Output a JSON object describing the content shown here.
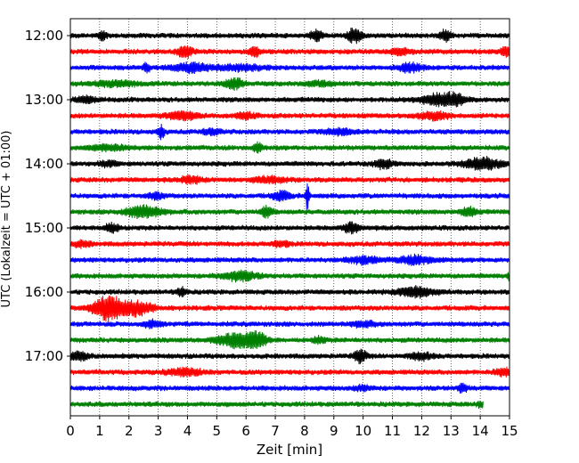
{
  "chart_data": {
    "type": "line",
    "title": "",
    "xlabel": "Zeit  [min]",
    "ylabel": "UTC (Lokalzeit = UTC + 01:00)",
    "xlim": [
      0,
      15
    ],
    "x_ticks": [
      "0",
      "1",
      "2",
      "3",
      "4",
      "5",
      "6",
      "7",
      "8",
      "9",
      "10",
      "11",
      "12",
      "13",
      "14",
      "15"
    ],
    "y_tick_labels": [
      "12:00",
      "13:00",
      "14:00",
      "15:00",
      "16:00",
      "17:00"
    ],
    "grid": "vertical dotted",
    "trace_colors": [
      "#000000",
      "#ff0000",
      "#0000ff",
      "#008000"
    ],
    "traces": [
      {
        "start": "12:00",
        "color": "black",
        "end_min": 15,
        "events": [
          [
            1.1,
            0.5,
            0.12
          ],
          [
            8.4,
            0.7,
            0.2
          ],
          [
            9.7,
            0.8,
            0.25
          ],
          [
            12.8,
            0.6,
            0.2
          ]
        ]
      },
      {
        "start": "12:15",
        "color": "red",
        "end_min": 15,
        "events": [
          [
            3.9,
            0.7,
            0.25
          ],
          [
            6.3,
            0.8,
            0.15
          ],
          [
            11.3,
            0.4,
            0.3
          ],
          [
            14.9,
            0.5,
            0.2
          ]
        ]
      },
      {
        "start": "12:30",
        "color": "blue",
        "end_min": 15,
        "events": [
          [
            2.6,
            0.7,
            0.1
          ],
          [
            4.1,
            0.5,
            0.6
          ],
          [
            5.8,
            0.3,
            0.8
          ],
          [
            11.6,
            0.5,
            0.4
          ]
        ]
      },
      {
        "start": "12:45",
        "color": "green",
        "end_min": 15,
        "events": [
          [
            1.5,
            0.3,
            0.8
          ],
          [
            5.6,
            0.6,
            0.3
          ],
          [
            8.5,
            0.25,
            0.5
          ]
        ]
      },
      {
        "start": "13:00",
        "color": "black",
        "end_min": 15,
        "events": [
          [
            0.5,
            0.4,
            0.3
          ],
          [
            12.6,
            0.7,
            0.6
          ],
          [
            13.2,
            0.5,
            0.3
          ]
        ]
      },
      {
        "start": "13:15",
        "color": "red",
        "end_min": 15,
        "events": [
          [
            3.8,
            0.45,
            0.5
          ],
          [
            6.0,
            0.35,
            0.3
          ],
          [
            12.4,
            0.4,
            0.5
          ]
        ]
      },
      {
        "start": "13:30",
        "color": "blue",
        "end_min": 15,
        "events": [
          [
            3.1,
            0.8,
            0.1
          ],
          [
            4.8,
            0.3,
            0.3
          ],
          [
            9.2,
            0.3,
            0.5
          ]
        ]
      },
      {
        "start": "13:45",
        "color": "green",
        "end_min": 15,
        "events": [
          [
            1.3,
            0.3,
            0.7
          ],
          [
            6.4,
            0.5,
            0.15
          ]
        ]
      },
      {
        "start": "14:00",
        "color": "black",
        "end_min": 15,
        "events": [
          [
            1.3,
            0.3,
            0.3
          ],
          [
            10.7,
            0.5,
            0.3
          ],
          [
            14.1,
            0.7,
            0.6
          ]
        ]
      },
      {
        "start": "14:15",
        "color": "red",
        "end_min": 15,
        "events": [
          [
            4.1,
            0.35,
            0.4
          ],
          [
            6.8,
            0.3,
            0.6
          ]
        ]
      },
      {
        "start": "14:30",
        "color": "blue",
        "end_min": 15,
        "events": [
          [
            2.9,
            0.3,
            0.3
          ],
          [
            7.2,
            0.5,
            0.3
          ],
          [
            8.1,
            1.8,
            0.06
          ]
        ]
      },
      {
        "start": "14:45",
        "color": "green",
        "end_min": 15,
        "events": [
          [
            2.5,
            0.7,
            0.6
          ],
          [
            6.7,
            0.6,
            0.2
          ],
          [
            13.6,
            0.45,
            0.3
          ]
        ]
      },
      {
        "start": "15:00",
        "color": "black",
        "end_min": 15,
        "events": [
          [
            1.4,
            0.5,
            0.25
          ],
          [
            9.6,
            0.6,
            0.25
          ]
        ]
      },
      {
        "start": "15:15",
        "color": "red",
        "end_min": 15,
        "events": [
          [
            0.4,
            0.3,
            0.3
          ],
          [
            7.2,
            0.3,
            0.3
          ]
        ]
      },
      {
        "start": "15:30",
        "color": "blue",
        "end_min": 15,
        "events": [
          [
            10.0,
            0.4,
            0.5
          ],
          [
            11.8,
            0.45,
            0.6
          ]
        ]
      },
      {
        "start": "15:45",
        "color": "green",
        "end_min": 15,
        "events": [
          [
            5.8,
            0.5,
            0.6
          ],
          [
            15.0,
            0.3,
            0.1
          ]
        ]
      },
      {
        "start": "16:00",
        "color": "black",
        "end_min": 15,
        "events": [
          [
            3.8,
            0.5,
            0.15
          ],
          [
            11.8,
            0.6,
            0.6
          ]
        ]
      },
      {
        "start": "16:15",
        "color": "red",
        "end_min": 15,
        "events": [
          [
            1.3,
            1.5,
            0.5
          ],
          [
            2.3,
            0.8,
            0.5
          ]
        ]
      },
      {
        "start": "16:30",
        "color": "blue",
        "end_min": 15,
        "events": [
          [
            2.8,
            0.35,
            0.3
          ],
          [
            10.0,
            0.3,
            0.4
          ]
        ]
      },
      {
        "start": "16:45",
        "color": "green",
        "end_min": 15,
        "events": [
          [
            5.7,
            0.8,
            0.7
          ],
          [
            6.4,
            0.7,
            0.3
          ],
          [
            8.5,
            0.4,
            0.2
          ]
        ]
      },
      {
        "start": "17:00",
        "color": "black",
        "end_min": 15,
        "events": [
          [
            0.3,
            0.5,
            0.3
          ],
          [
            9.9,
            0.8,
            0.2
          ],
          [
            12.0,
            0.4,
            0.4
          ]
        ]
      },
      {
        "start": "17:15",
        "color": "red",
        "end_min": 15,
        "events": [
          [
            3.9,
            0.4,
            0.6
          ],
          [
            14.8,
            0.45,
            0.3
          ]
        ]
      },
      {
        "start": "17:30",
        "color": "blue",
        "end_min": 15,
        "events": [
          [
            13.4,
            0.5,
            0.15
          ],
          [
            10.0,
            0.25,
            0.3
          ]
        ]
      },
      {
        "start": "17:45",
        "color": "green",
        "end_min": 14.1,
        "events": [
          [
            14.0,
            0.3,
            0.1
          ]
        ]
      }
    ]
  }
}
